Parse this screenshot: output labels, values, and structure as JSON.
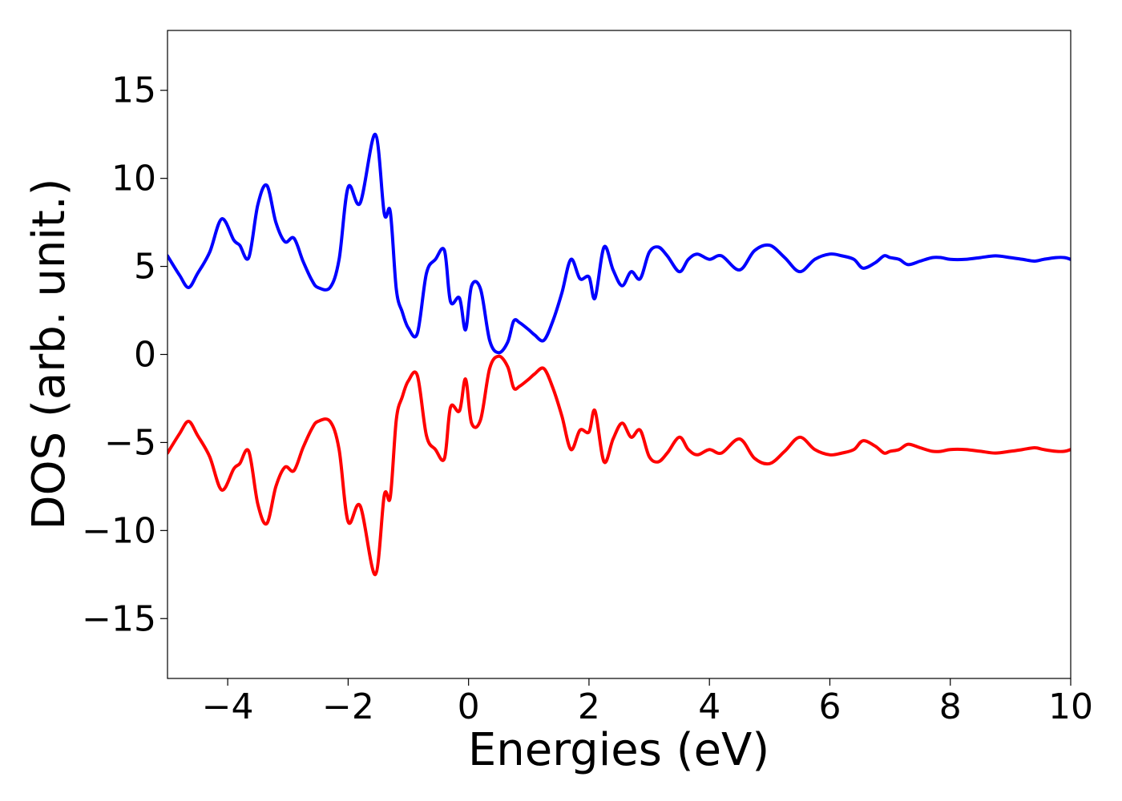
{
  "chart_data": {
    "type": "line",
    "title": "",
    "xlabel": "Energies (eV)",
    "ylabel": "DOS (arb. unit.)",
    "xlim": [
      -5,
      10
    ],
    "ylim": [
      -18.4,
      18.4
    ],
    "xticks": [
      -4,
      -2,
      0,
      2,
      4,
      6,
      8,
      10
    ],
    "xtick_labels": [
      "−4",
      "−2",
      "0",
      "2",
      "4",
      "6",
      "8",
      "10"
    ],
    "yticks": [
      -15,
      -10,
      -5,
      0,
      5,
      10,
      15
    ],
    "ytick_labels": [
      "−15",
      "−10",
      "−5",
      "0",
      "5",
      "10",
      "15"
    ],
    "grid": false,
    "legend": "none",
    "series": [
      {
        "color": "#0000ff",
        "x": [
          -5.0,
          -4.8,
          -4.65,
          -4.5,
          -4.3,
          -4.1,
          -3.9,
          -3.8,
          -3.65,
          -3.5,
          -3.35,
          -3.2,
          -3.05,
          -2.9,
          -2.75,
          -2.6,
          -2.5,
          -2.3,
          -2.15,
          -2.0,
          -1.8,
          -1.55,
          -1.4,
          -1.3,
          -1.2,
          -1.1,
          -1.0,
          -0.85,
          -0.7,
          -0.55,
          -0.4,
          -0.3,
          -0.15,
          -0.05,
          0.05,
          0.2,
          0.35,
          0.5,
          0.65,
          0.75,
          0.85,
          1.0,
          1.1,
          1.25,
          1.4,
          1.55,
          1.7,
          1.85,
          2.0,
          2.1,
          2.25,
          2.4,
          2.55,
          2.7,
          2.85,
          3.0,
          3.15,
          3.3,
          3.5,
          3.65,
          3.8,
          4.0,
          4.2,
          4.5,
          4.75,
          5.0,
          5.25,
          5.5,
          5.75,
          6.0,
          6.2,
          6.4,
          6.55,
          6.75,
          6.9,
          7.0,
          7.15,
          7.3,
          7.5,
          7.7,
          7.85,
          8.0,
          8.25,
          8.5,
          8.75,
          9.0,
          9.2,
          9.4,
          9.55,
          9.75,
          9.9,
          10.0
        ],
        "y": [
          5.6,
          4.5,
          3.8,
          4.6,
          5.8,
          7.7,
          6.5,
          6.2,
          5.5,
          8.5,
          9.6,
          7.5,
          6.4,
          6.6,
          5.3,
          4.2,
          3.8,
          3.8,
          5.4,
          9.5,
          8.6,
          12.5,
          8.0,
          8.1,
          3.7,
          2.4,
          1.5,
          1.2,
          4.6,
          5.4,
          5.9,
          3.0,
          3.2,
          1.4,
          3.9,
          3.7,
          0.8,
          0.1,
          0.7,
          1.9,
          1.8,
          1.4,
          1.1,
          0.8,
          1.9,
          3.5,
          5.4,
          4.3,
          4.4,
          3.2,
          6.1,
          4.8,
          3.9,
          4.7,
          4.3,
          5.8,
          6.1,
          5.6,
          4.7,
          5.4,
          5.7,
          5.4,
          5.6,
          4.8,
          5.9,
          6.2,
          5.5,
          4.7,
          5.4,
          5.7,
          5.6,
          5.4,
          4.9,
          5.2,
          5.6,
          5.5,
          5.4,
          5.1,
          5.3,
          5.5,
          5.5,
          5.4,
          5.4,
          5.5,
          5.6,
          5.5,
          5.4,
          5.3,
          5.4,
          5.5,
          5.5,
          5.4
        ]
      },
      {
        "color": "#ff0000",
        "x": [
          -5.0,
          -4.8,
          -4.65,
          -4.5,
          -4.3,
          -4.1,
          -3.9,
          -3.8,
          -3.65,
          -3.5,
          -3.35,
          -3.2,
          -3.05,
          -2.9,
          -2.75,
          -2.6,
          -2.5,
          -2.3,
          -2.15,
          -2.0,
          -1.8,
          -1.55,
          -1.4,
          -1.3,
          -1.2,
          -1.1,
          -1.0,
          -0.85,
          -0.7,
          -0.55,
          -0.4,
          -0.3,
          -0.15,
          -0.05,
          0.05,
          0.2,
          0.35,
          0.5,
          0.65,
          0.75,
          0.85,
          1.0,
          1.1,
          1.25,
          1.4,
          1.55,
          1.7,
          1.85,
          2.0,
          2.1,
          2.25,
          2.4,
          2.55,
          2.7,
          2.85,
          3.0,
          3.15,
          3.3,
          3.5,
          3.65,
          3.8,
          4.0,
          4.2,
          4.5,
          4.75,
          5.0,
          5.25,
          5.5,
          5.75,
          6.0,
          6.2,
          6.4,
          6.55,
          6.75,
          6.9,
          7.0,
          7.15,
          7.3,
          7.5,
          7.7,
          7.85,
          8.0,
          8.25,
          8.5,
          8.75,
          9.0,
          9.2,
          9.4,
          9.55,
          9.75,
          9.9,
          10.0
        ],
        "y": [
          -5.6,
          -4.5,
          -3.8,
          -4.6,
          -5.8,
          -7.7,
          -6.5,
          -6.2,
          -5.5,
          -8.5,
          -9.6,
          -7.5,
          -6.4,
          -6.6,
          -5.3,
          -4.2,
          -3.8,
          -3.8,
          -5.4,
          -9.5,
          -8.6,
          -12.5,
          -8.0,
          -8.1,
          -3.7,
          -2.4,
          -1.5,
          -1.2,
          -4.6,
          -5.4,
          -5.9,
          -3.0,
          -3.2,
          -1.4,
          -3.9,
          -3.7,
          -0.8,
          -0.1,
          -0.7,
          -1.9,
          -1.8,
          -1.4,
          -1.1,
          -0.8,
          -1.9,
          -3.5,
          -5.4,
          -4.3,
          -4.4,
          -3.2,
          -6.1,
          -4.8,
          -3.9,
          -4.7,
          -4.3,
          -5.8,
          -6.1,
          -5.6,
          -4.7,
          -5.4,
          -5.7,
          -5.4,
          -5.6,
          -4.8,
          -5.9,
          -6.2,
          -5.5,
          -4.7,
          -5.4,
          -5.7,
          -5.6,
          -5.4,
          -4.9,
          -5.2,
          -5.6,
          -5.5,
          -5.4,
          -5.1,
          -5.3,
          -5.5,
          -5.5,
          -5.4,
          -5.4,
          -5.5,
          -5.6,
          -5.5,
          -5.4,
          -5.3,
          -5.4,
          -5.5,
          -5.5,
          -5.4
        ]
      }
    ]
  }
}
